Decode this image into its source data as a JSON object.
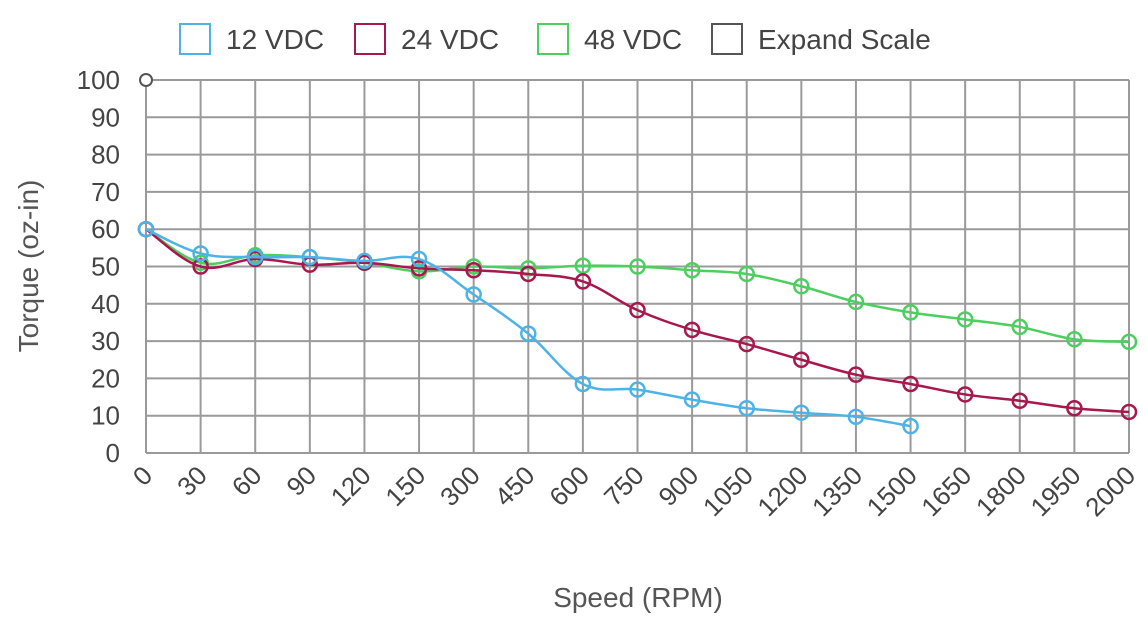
{
  "chart_data": {
    "type": "line",
    "xlabel": "Speed (RPM)",
    "ylabel": "Torque (oz-in)",
    "categories": [
      "0",
      "30",
      "60",
      "90",
      "120",
      "150",
      "300",
      "450",
      "600",
      "750",
      "900",
      "1050",
      "1200",
      "1350",
      "1500",
      "1650",
      "1800",
      "1950",
      "2000"
    ],
    "ylim": [
      0,
      100
    ],
    "yticks": [
      0,
      10,
      20,
      30,
      40,
      50,
      60,
      70,
      80,
      90,
      100
    ],
    "grid": true,
    "legend_position": "top",
    "series": [
      {
        "name": "12 VDC",
        "color": "#4db3e6",
        "values": [
          60,
          53.5,
          52.5,
          52.5,
          51.5,
          52,
          42.5,
          32,
          18.5,
          17,
          14.3,
          12,
          10.8,
          9.7,
          7.2,
          null,
          null,
          null,
          null
        ]
      },
      {
        "name": "24  VDC",
        "color": "#a8174d",
        "values": [
          60,
          50,
          52,
          50.5,
          51,
          49.5,
          49,
          48,
          46,
          38.3,
          33,
          29.2,
          25,
          21,
          18.5,
          15.7,
          14,
          12,
          11
        ]
      },
      {
        "name": "48 VDC",
        "color": "#4ccf5e",
        "values": [
          60,
          51,
          53,
          52.5,
          51,
          48.7,
          50,
          49.5,
          50.2,
          50,
          49,
          48,
          44.7,
          40.5,
          37.7,
          35.8,
          33.8,
          30.5,
          29.8
        ]
      }
    ],
    "extra_legend": {
      "name": "Expand Scale",
      "color": "#555555"
    },
    "axis_end_marker_value": 100
  }
}
